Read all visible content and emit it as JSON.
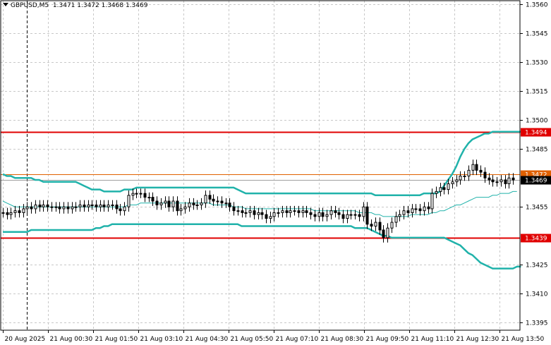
{
  "header": {
    "symbol": "GBPUSD,M5",
    "ohlc": "1.3471 1.3472 1.3468 1.3469"
  },
  "colors": {
    "background": "#ffffff",
    "grid": "#c8c8c8",
    "frame": "#000000",
    "candle": "#000000",
    "bollinger": "#20b2aa",
    "level": "#e00000",
    "bid_line": "#e06000",
    "price_label_bg": "#e00000",
    "current_price_bg": "#000000",
    "vertical_marker": "#000000"
  },
  "chart_data": {
    "type": "candlestick",
    "symbol": "GBPUSD",
    "timeframe": "M5",
    "grid": true,
    "y_axis": {
      "position": "right",
      "ylim": [
        1.3391,
        1.3562
      ],
      "ticks": [
        "1.3560",
        "1.3545",
        "1.3530",
        "1.3515",
        "1.3500",
        "1.3485",
        "1.3455",
        "1.3425",
        "1.3410",
        "1.3395"
      ]
    },
    "x_axis": {
      "ticks": [
        "20 Aug 2025",
        "21 Aug 00:30",
        "21 Aug 01:50",
        "21 Aug 03:10",
        "21 Aug 04:30",
        "21 Aug 05:50",
        "21 Aug 07:10",
        "21 Aug 08:30",
        "21 Aug 09:50",
        "21 Aug 11:10",
        "21 Aug 12:30",
        "21 Aug 13:50"
      ]
    },
    "close": [
      1.3452,
      1.3451,
      1.3452,
      1.3453,
      1.3452,
      1.3454,
      1.3455,
      1.3454,
      1.3456,
      1.3455,
      1.3456,
      1.3455,
      1.3455,
      1.3455,
      1.3454,
      1.3455,
      1.3454,
      1.3455,
      1.3455,
      1.3456,
      1.3455,
      1.3456,
      1.3456,
      1.3455,
      1.3456,
      1.3455,
      1.3456,
      1.3456,
      1.3454,
      1.3453,
      1.3455,
      1.3461,
      1.3462,
      1.3462,
      1.3462,
      1.346,
      1.346,
      1.3458,
      1.3456,
      1.3457,
      1.3458,
      1.3455,
      1.3458,
      1.3453,
      1.3454,
      1.3455,
      1.3457,
      1.3456,
      1.3456,
      1.3457,
      1.3461,
      1.3459,
      1.3458,
      1.3458,
      1.3457,
      1.3457,
      1.3455,
      1.3453,
      1.3453,
      1.3452,
      1.3452,
      1.3453,
      1.3451,
      1.3452,
      1.3451,
      1.3449,
      1.345,
      1.3452,
      1.3452,
      1.3453,
      1.3452,
      1.3453,
      1.3453,
      1.3452,
      1.3453,
      1.3452,
      1.3451,
      1.345,
      1.3452,
      1.345,
      1.3451,
      1.3453,
      1.3452,
      1.3451,
      1.3449,
      1.3451,
      1.3451,
      1.3451,
      1.345,
      1.3455,
      1.3446,
      1.3445,
      1.3447,
      1.3443,
      1.3439,
      1.3444,
      1.3447,
      1.345,
      1.3451,
      1.3453,
      1.3452,
      1.3454,
      1.3454,
      1.3453,
      1.3455,
      1.3454,
      1.3462,
      1.3463,
      1.3465,
      1.3464,
      1.3467,
      1.3468,
      1.3469,
      1.3471,
      1.3471,
      1.3474,
      1.3477,
      1.3474,
      1.3473,
      1.347,
      1.3469,
      1.3468,
      1.3468,
      1.3469,
      1.3467,
      1.347,
      1.3469
    ],
    "bollinger_upper": [
      1.3472,
      1.3471,
      1.3471,
      1.347,
      1.347,
      1.347,
      1.347,
      1.347,
      1.3469,
      1.3469,
      1.3468,
      1.3468,
      1.3468,
      1.3468,
      1.3468,
      1.3468,
      1.3468,
      1.3468,
      1.3468,
      1.3467,
      1.3466,
      1.3465,
      1.3464,
      1.3464,
      1.3464,
      1.3463,
      1.3463,
      1.3463,
      1.3463,
      1.3463,
      1.3464,
      1.3464,
      1.3464,
      1.3465,
      1.3465,
      1.3465,
      1.3465,
      1.3465,
      1.3465,
      1.3465,
      1.3465,
      1.3465,
      1.3465,
      1.3465,
      1.3465,
      1.3465,
      1.3465,
      1.3465,
      1.3465,
      1.3465,
      1.3465,
      1.3465,
      1.3465,
      1.3465,
      1.3465,
      1.3465,
      1.3465,
      1.3465,
      1.3464,
      1.3463,
      1.3462,
      1.3462,
      1.3462,
      1.3462,
      1.3462,
      1.3462,
      1.3462,
      1.3462,
      1.3462,
      1.3462,
      1.3462,
      1.3462,
      1.3462,
      1.3462,
      1.3462,
      1.3462,
      1.3462,
      1.3462,
      1.3462,
      1.3462,
      1.3462,
      1.3462,
      1.3462,
      1.3462,
      1.3462,
      1.3462,
      1.3462,
      1.3462,
      1.3462,
      1.3462,
      1.3462,
      1.3462,
      1.3461,
      1.3461,
      1.3461,
      1.3461,
      1.3461,
      1.3461,
      1.3461,
      1.3461,
      1.3461,
      1.3461,
      1.3461,
      1.3461,
      1.3462,
      1.3462,
      1.3462,
      1.3462,
      1.3463,
      1.3466,
      1.3469,
      1.3472,
      1.3476,
      1.3481,
      1.3485,
      1.3488,
      1.349,
      1.3491,
      1.3492,
      1.3493,
      1.3493,
      1.3494,
      1.3494,
      1.3494,
      1.3494,
      1.3494,
      1.3494,
      1.3494,
      1.3494
    ],
    "bollinger_middle": [
      1.3458,
      1.3457,
      1.3456,
      1.3455,
      1.3455,
      1.3455,
      1.3455,
      1.3455,
      1.3455,
      1.3455,
      1.3455,
      1.3455,
      1.3455,
      1.3455,
      1.3455,
      1.3455,
      1.3455,
      1.3455,
      1.3455,
      1.3455,
      1.3455,
      1.3455,
      1.3455,
      1.3455,
      1.3455,
      1.3455,
      1.3455,
      1.3455,
      1.3455,
      1.3455,
      1.3455,
      1.3456,
      1.3456,
      1.3456,
      1.3457,
      1.3457,
      1.3457,
      1.3457,
      1.3457,
      1.3457,
      1.3457,
      1.3457,
      1.3457,
      1.3457,
      1.3457,
      1.3457,
      1.3457,
      1.3457,
      1.3457,
      1.3457,
      1.3457,
      1.3457,
      1.3456,
      1.3456,
      1.3456,
      1.3456,
      1.3456,
      1.3455,
      1.3455,
      1.3455,
      1.3454,
      1.3454,
      1.3454,
      1.3454,
      1.3454,
      1.3454,
      1.3454,
      1.3454,
      1.3454,
      1.3454,
      1.3454,
      1.3454,
      1.3454,
      1.3454,
      1.3454,
      1.3454,
      1.3454,
      1.3453,
      1.3453,
      1.3453,
      1.3453,
      1.3453,
      1.3453,
      1.3453,
      1.3453,
      1.3453,
      1.3453,
      1.3453,
      1.3452,
      1.3452,
      1.3452,
      1.3452,
      1.3451,
      1.3451,
      1.345,
      1.345,
      1.345,
      1.345,
      1.345,
      1.345,
      1.345,
      1.3451,
      1.3451,
      1.3451,
      1.3451,
      1.3451,
      1.3452,
      1.3452,
      1.3453,
      1.3453,
      1.3454,
      1.3455,
      1.3456,
      1.3456,
      1.3457,
      1.3458,
      1.3459,
      1.346,
      1.346,
      1.346,
      1.346,
      1.3461,
      1.3461,
      1.3462,
      1.3462,
      1.3462,
      1.3463,
      1.3463
    ],
    "bollinger_lower": [
      1.3442,
      1.3442,
      1.3442,
      1.3442,
      1.3442,
      1.3442,
      1.3442,
      1.3443,
      1.3443,
      1.3443,
      1.3443,
      1.3443,
      1.3443,
      1.3443,
      1.3443,
      1.3443,
      1.3443,
      1.3443,
      1.3443,
      1.3443,
      1.3443,
      1.3443,
      1.3443,
      1.3444,
      1.3444,
      1.3445,
      1.3445,
      1.3446,
      1.3446,
      1.3446,
      1.3446,
      1.3446,
      1.3446,
      1.3446,
      1.3446,
      1.3446,
      1.3446,
      1.3446,
      1.3446,
      1.3446,
      1.3446,
      1.3446,
      1.3446,
      1.3446,
      1.3446,
      1.3446,
      1.3446,
      1.3446,
      1.3446,
      1.3446,
      1.3446,
      1.3446,
      1.3446,
      1.3446,
      1.3446,
      1.3446,
      1.3446,
      1.3446,
      1.3446,
      1.3445,
      1.3445,
      1.3445,
      1.3445,
      1.3445,
      1.3445,
      1.3445,
      1.3445,
      1.3445,
      1.3445,
      1.3445,
      1.3445,
      1.3445,
      1.3445,
      1.3445,
      1.3445,
      1.3445,
      1.3445,
      1.3445,
      1.3445,
      1.3445,
      1.3445,
      1.3445,
      1.3445,
      1.3445,
      1.3445,
      1.3445,
      1.3445,
      1.3444,
      1.3444,
      1.3444,
      1.3444,
      1.3443,
      1.3442,
      1.3441,
      1.344,
      1.344,
      1.3439,
      1.3439,
      1.3439,
      1.3439,
      1.3439,
      1.3439,
      1.3439,
      1.3439,
      1.3439,
      1.3439,
      1.3439,
      1.3439,
      1.3439,
      1.3439,
      1.3438,
      1.3437,
      1.3436,
      1.3435,
      1.3433,
      1.3431,
      1.343,
      1.3428,
      1.3426,
      1.3425,
      1.3424,
      1.3423,
      1.3423,
      1.3423,
      1.3423,
      1.3423,
      1.3423,
      1.3424,
      1.3424
    ],
    "horizontal_levels": [
      {
        "label": "1.3494",
        "value": 1.3494
      },
      {
        "label": "1.3439",
        "value": 1.3439
      }
    ],
    "bid_line": {
      "label": "1.3472",
      "value": 1.3472
    },
    "current_price": {
      "label": "1.3469",
      "value": 1.3469
    },
    "day_separator_index": 6
  }
}
